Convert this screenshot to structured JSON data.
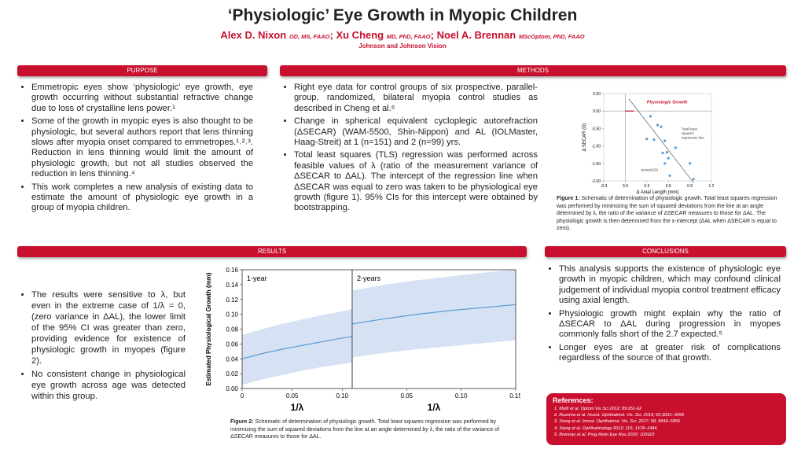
{
  "header": {
    "title": "‘Physiologic’ Eye Growth in Myopic Children",
    "authors": [
      {
        "name": "Alex D. Nixon",
        "credentials": "OD, MS, FAAO"
      },
      {
        "name": "Xu Cheng",
        "credentials": "MD, PhD, FAAO"
      },
      {
        "name": "Noel A. Brennan",
        "credentials": "MScOptom, PhD, FAAO"
      }
    ],
    "separator": ";",
    "affiliation": "Johnson and Johnson Vision"
  },
  "purpose": {
    "heading": "PURPOSE",
    "items": [
      "Emmetropic eyes show ‘physiologic’ eye growth, eye growth occurring without substantial refractive change due to loss of crystalline lens power.¹",
      "Some of the growth in myopic eyes is also thought to be physiologic, but several authors report that lens thinning slows after myopia onset compared to emmetropes.¹˒²˒³. Reduction in lens thinning would limit the amount of physiologic growth, but not all studies observed the reduction in lens thinning.⁴",
      "This work completes a new analysis of existing data to estimate the amount of physiologic eye growth in a group of myopia children."
    ]
  },
  "methods": {
    "heading": "METHODS",
    "items": [
      "Right eye data for control groups of six prospective, parallel-group, randomized, bilateral myopia control studies as described in Cheng et al.⁶",
      "Change in spherical equivalent cycloplegic autorefraction (ΔSECAR) (WAM-5500, Shin-Nippon) and AL (IOLMaster, Haag-Streit) at 1 (n=151) and 2 (n=99) yrs.",
      "Total least squares (TLS) regression was performed across feasible values of λ (ratio of the measurement variance of ΔSECAR to ΔAL). The intercept of the regression line when ΔSECAR was equal to zero was taken to be physiological eye growth (figure 1). 95% CIs for this intercept were obtained by bootstrapping."
    ],
    "figure_caption_label": "Figure 1:",
    "figure_caption": " Schematic of determination of physiologic growth. Total least squares regression was performed by minimizing the sum of squared deviations from the line at an angle determined by λ, the ratio of the variance of ΔSECAR measures to those for ΔAL. The physiologic growth is then determined from the x-intercept (ΔAL when ΔSECAR is equal to zero)."
  },
  "results": {
    "heading": "RESULTS",
    "items": [
      "The results were sensitive to λ, but even in the extreme case of 1/λ = 0, (zero variance in ΔAL), the lower limit of the 95% CI was greater than zero, providing evidence for existence of physiologic growth in myopes (figure 2).",
      "No consistent change in physiological eye growth across age was detected within this group."
    ],
    "figure_caption_label": "Figure 2:",
    "figure_caption": " Schematic of determination of physiologic growth. Total least squares regression was performed by minimizing the sum of squared deviations from the line at an angle determined by λ, the ratio of the variance of ΔSECAR measures to those for ΔAL."
  },
  "conclusions": {
    "heading": "CONCLUSIONS",
    "items": [
      "This analysis supports the existence of physiologic eye growth in myopic children, which may confound clinical judgement of individual myopia control treatment efficacy using axial length.",
      "Physiologic growth might explain why the ratio of ΔSECAR to ΔAL during progression in myopes commonly falls short of the 2.7 expected.⁵",
      "Longer eyes are at greater risk of complications regardless of the source of that growth."
    ]
  },
  "references": {
    "heading": "References:",
    "items": [
      "1. Mutti et al. Optom Vis Sci 2012; 89:251-62",
      "2. Rozema et al. Invest. Ophthalmol. Vis. Sci. 2019; 60,3091–3099",
      "3. Xiong et al. Invest. Ophthalmol. Vis. Sci. 2017; 58, 5849–5855",
      "4. Xiang et al. Ophthalmology 2012; 119, 1478–1484",
      "5. Brennan et al. Prog Retin Eye Res 2020; 100923"
    ]
  },
  "chart_data": [
    {
      "type": "scatter",
      "xlabel": "Δ Axial Length (mm)",
      "ylabel": "Δ SECAR (D)",
      "x": [
        0.35,
        0.45,
        0.5,
        0.3,
        0.4,
        0.55,
        0.7,
        0.52,
        0.58,
        0.6,
        0.55,
        0.62,
        0.9,
        0.95
      ],
      "values": [
        -0.15,
        -0.4,
        -0.45,
        -0.8,
        -0.82,
        -0.85,
        -1.05,
        -1.2,
        -1.18,
        -1.35,
        -1.5,
        -1.85,
        -1.5,
        -1.95
      ],
      "color": "#5b9bd5",
      "line_x": [
        0.05,
        0.95
      ],
      "line_y": [
        0.35,
        -2.05
      ],
      "intercept": 0.12,
      "xlim": [
        -0.3,
        1.2
      ],
      "ylim": [
        -2.0,
        0.5
      ],
      "xticks": [
        -0.3,
        {
          "value": 0,
          "label": "0.0"
        },
        0.3,
        0.6,
        0.9,
        1.2
      ],
      "yticks": [
        {
          "value": 0.5,
          "label": "0.50"
        },
        {
          "value": 0,
          "label": "0.00"
        },
        {
          "value": -0.5,
          "label": "-0.50"
        },
        {
          "value": -1,
          "label": "-1.00"
        },
        {
          "value": -1.5,
          "label": "-1.50"
        },
        {
          "value": -2,
          "label": "-2.00"
        }
      ],
      "annotations": [
        "Physiologic Growth",
        "Total least squares regression line",
        "arctan(1/λ)"
      ]
    },
    {
      "type": "line",
      "panel_label": "1-year",
      "ylabel": "Estimated Physiological Growth (mm)",
      "xlabel": "1/λ",
      "x": [
        0,
        0.02,
        0.04,
        0.06,
        0.08,
        0.1,
        0.11
      ],
      "values": [
        0.04,
        0.047,
        0.053,
        0.058,
        0.063,
        0.068,
        0.07
      ],
      "lower": [
        0.005,
        0.012,
        0.018,
        0.024,
        0.029,
        0.033,
        0.035
      ],
      "upper": [
        0.072,
        0.08,
        0.087,
        0.093,
        0.099,
        0.104,
        0.107
      ],
      "color": "#5b9bd5",
      "band_color": "#d6e2f3",
      "xlim": [
        0,
        0.11
      ],
      "ylim": [
        0,
        0.16
      ],
      "xticks": [
        0,
        0.05,
        {
          "value": 0.1,
          "label": "0.10"
        }
      ],
      "yticks": [
        {
          "value": 0,
          "label": "0.00"
        },
        {
          "value": 0.02,
          "label": "0.02"
        },
        {
          "value": 0.04,
          "label": "0.04"
        },
        {
          "value": 0.06,
          "label": "0.06"
        },
        {
          "value": 0.08,
          "label": "0.08"
        },
        {
          "value": 0.1,
          "label": "0.10"
        },
        {
          "value": 0.12,
          "label": "0.12"
        },
        {
          "value": 0.14,
          "label": "0.14"
        },
        {
          "value": 0.16,
          "label": "0.16"
        }
      ]
    },
    {
      "type": "line",
      "panel_label": "2-years",
      "xlabel": "1/λ",
      "x": [
        0,
        0.03,
        0.06,
        0.09,
        0.12,
        0.15
      ],
      "values": [
        0.087,
        0.094,
        0.1,
        0.105,
        0.109,
        0.113
      ],
      "lower": [
        0.042,
        0.048,
        0.053,
        0.057,
        0.061,
        0.065
      ],
      "upper": [
        0.132,
        0.14,
        0.146,
        0.151,
        0.156,
        0.16
      ],
      "color": "#5b9bd5",
      "band_color": "#d6e2f3",
      "xlim": [
        0,
        0.15
      ],
      "ylim": [
        0,
        0.16
      ],
      "xticks": [
        0.05,
        {
          "value": 0.1,
          "label": "0.10"
        },
        0.15
      ]
    }
  ]
}
